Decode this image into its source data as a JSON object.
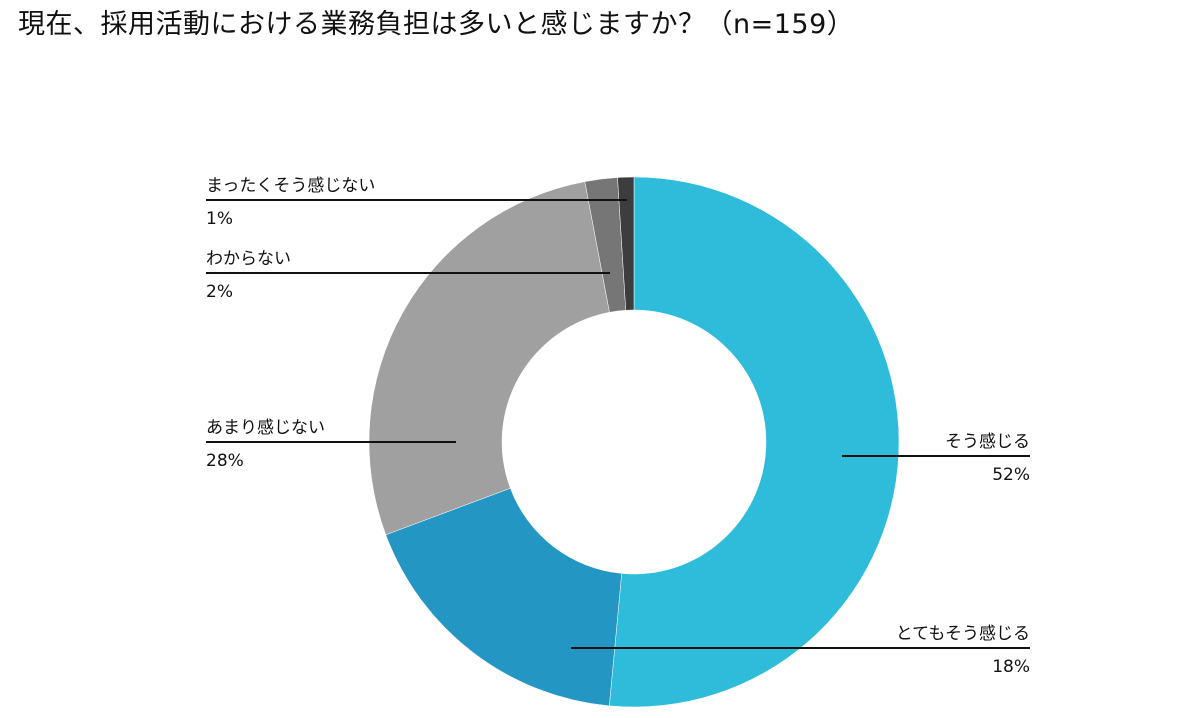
{
  "title": "現在、採用活動における業務負担は多いと感じますか？（n=159）",
  "chart_data": {
    "type": "pie",
    "donut": true,
    "title": "現在、採用活動における業務負担は多いと感じますか？（n=159）",
    "start_angle_deg": 0,
    "direction": "clockwise",
    "slices": [
      {
        "label": "そう感じる",
        "value": 52,
        "value_label": "52%",
        "color": "#2fbcdb"
      },
      {
        "label": "とてもそう感じる",
        "value": 18,
        "value_label": "18%",
        "color": "#2496c3"
      },
      {
        "label": "あまり感じない",
        "value": 28,
        "value_label": "28%",
        "color": "#a0a0a0"
      },
      {
        "label": "わからない",
        "value": 2,
        "value_label": "2%",
        "color": "#767676"
      },
      {
        "label": "まったくそう感じない",
        "value": 1,
        "value_label": "1%",
        "color": "#3d3d3d"
      }
    ],
    "legend": "none"
  }
}
